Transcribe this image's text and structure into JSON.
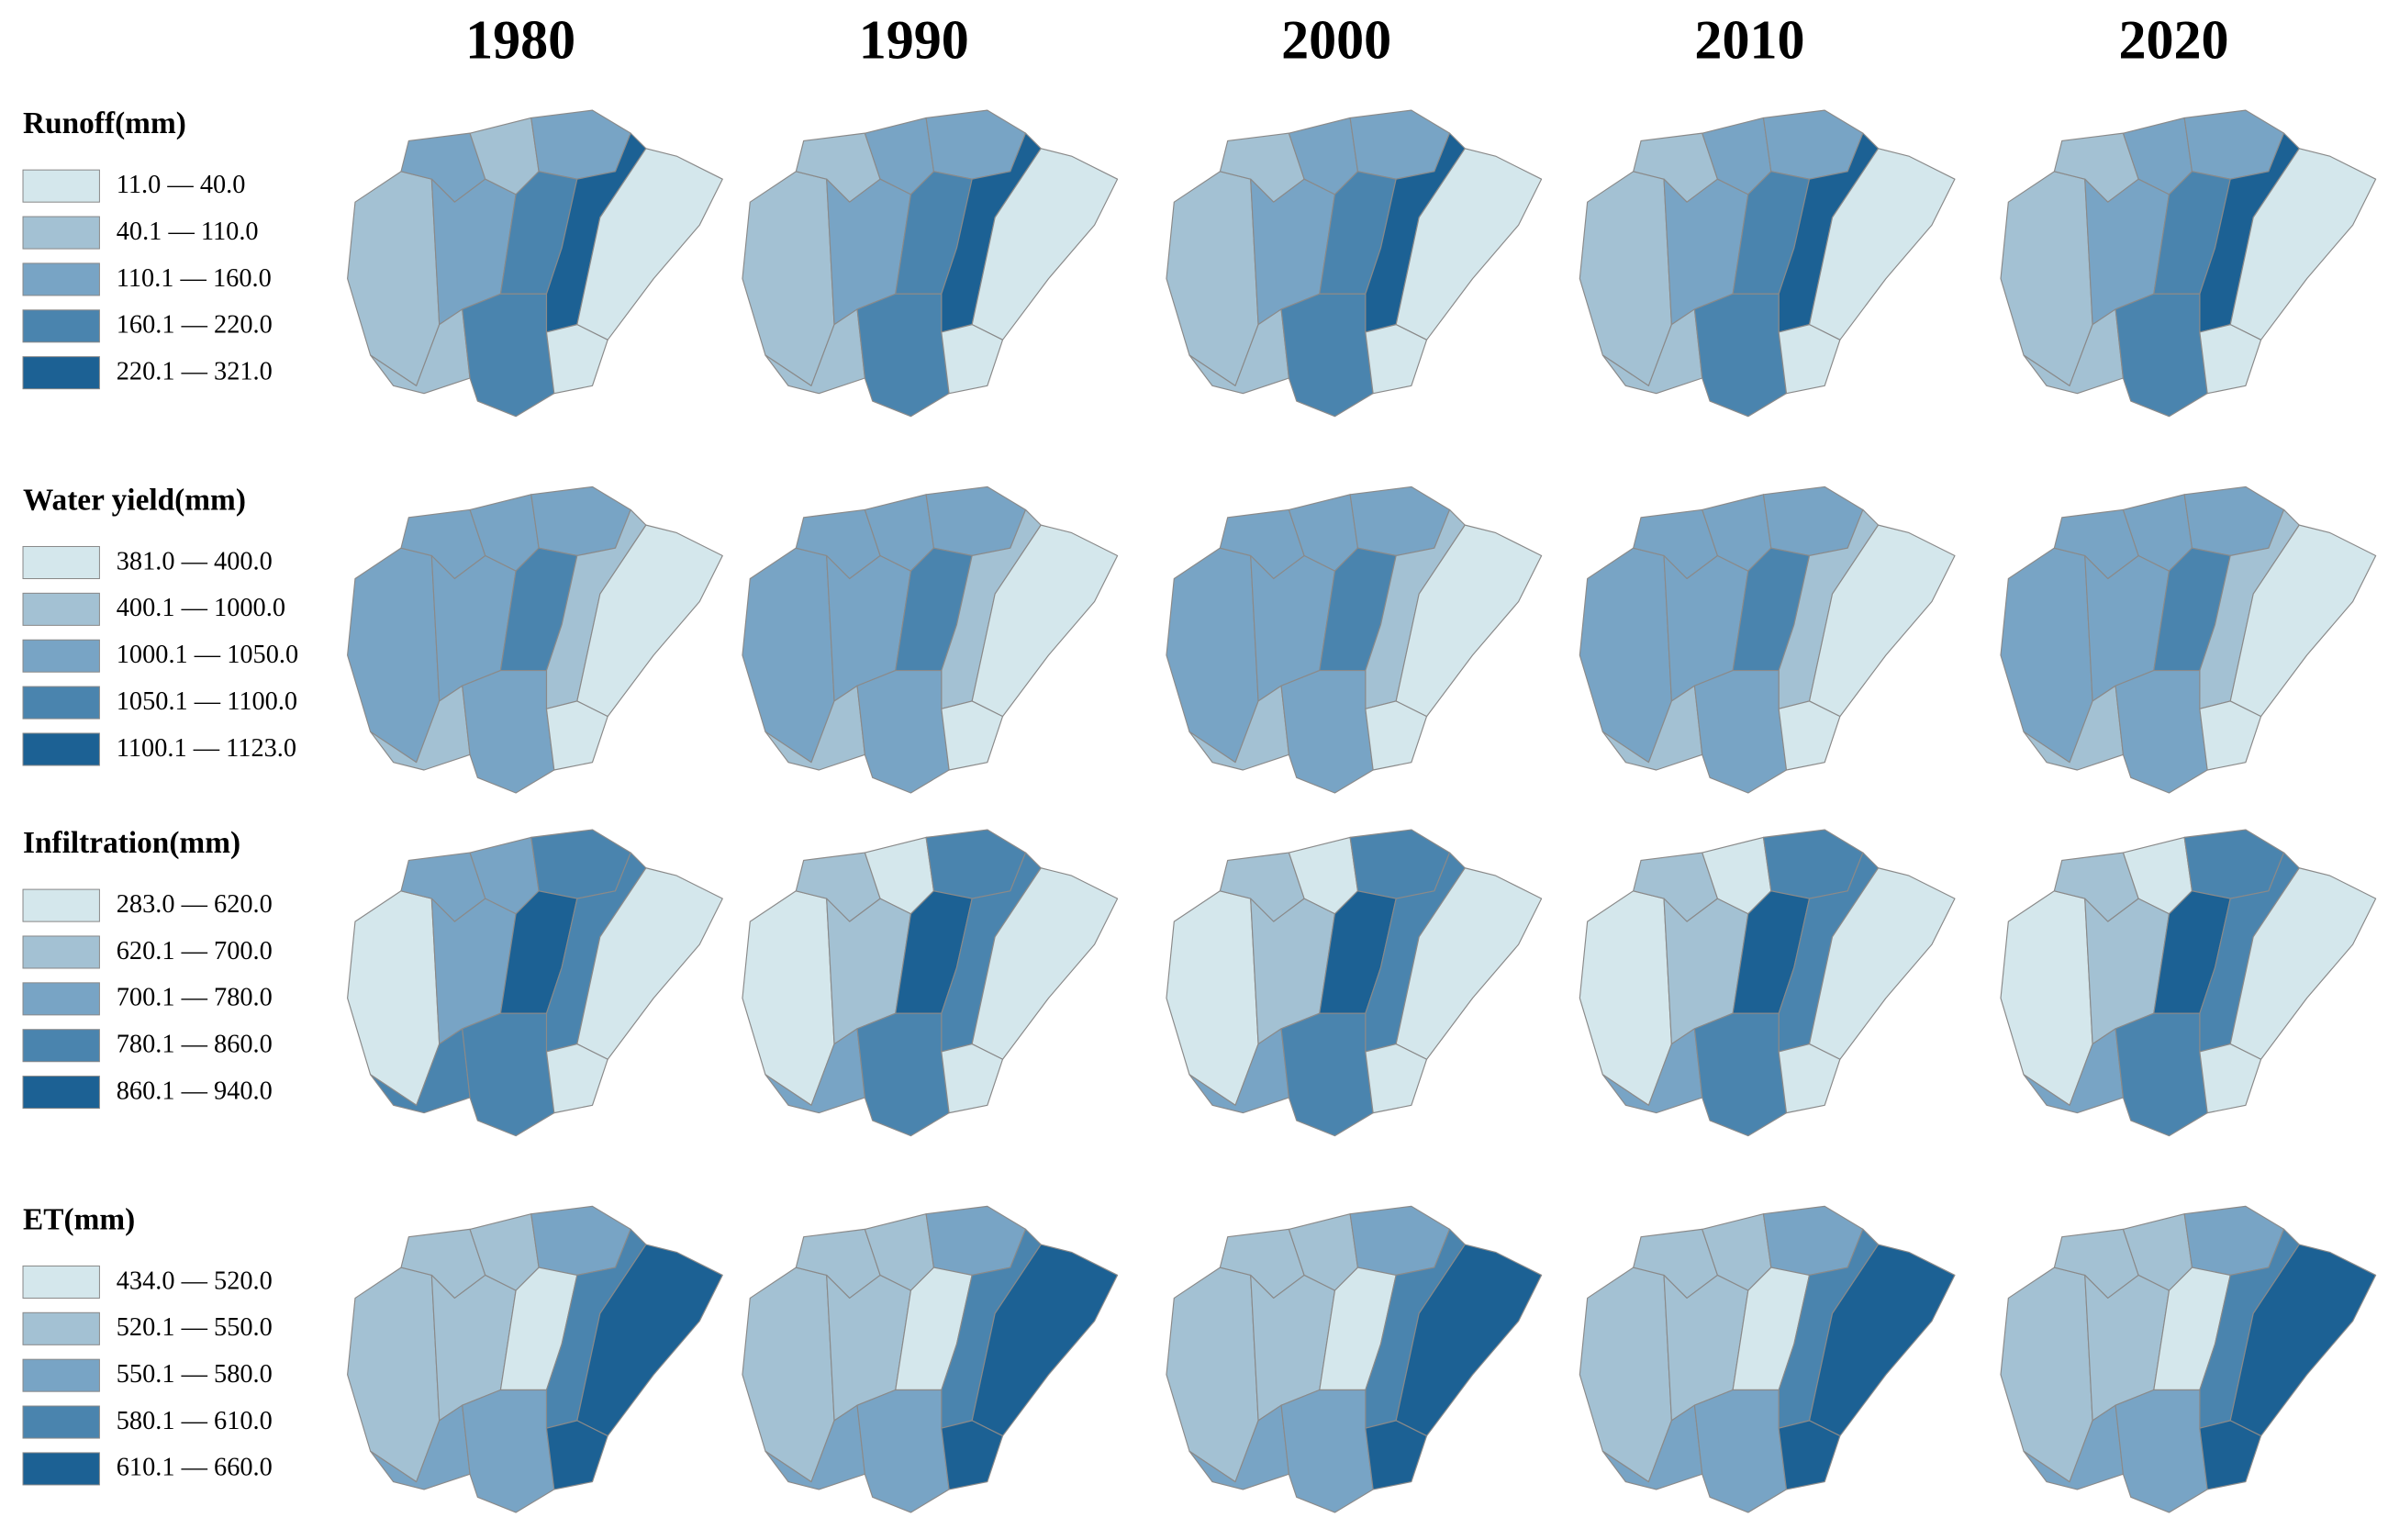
{
  "columns": [
    "1980",
    "1990",
    "2000",
    "2010",
    "2020"
  ],
  "colors": [
    "#d4e7ec",
    "#a3c1d3",
    "#78a4c5",
    "#4a84ae",
    "#1c6194"
  ],
  "rows": [
    {
      "title": "Runoff(mm)",
      "classes": [
        "11.0 — 40.0",
        "40.1 — 110.0",
        "110.1 — 160.0",
        "160.1 — 220.0",
        "220.1 — 321.0"
      ],
      "maps": [
        [
          1,
          2,
          1,
          2,
          2,
          3,
          4,
          0,
          1,
          3,
          0
        ],
        [
          1,
          1,
          2,
          2,
          2,
          3,
          4,
          0,
          1,
          3,
          0
        ],
        [
          1,
          1,
          2,
          2,
          2,
          3,
          4,
          0,
          1,
          3,
          0
        ],
        [
          1,
          1,
          2,
          2,
          2,
          3,
          4,
          0,
          1,
          3,
          0
        ],
        [
          1,
          1,
          2,
          2,
          2,
          3,
          4,
          0,
          1,
          3,
          0
        ]
      ]
    },
    {
      "title": "Water yield(mm)",
      "classes": [
        "381.0 — 400.0",
        "400.1 — 1000.0",
        "1000.1 — 1050.0",
        "1050.1 — 1100.0",
        "1100.1 — 1123.0"
      ],
      "maps": [
        [
          2,
          2,
          2,
          2,
          2,
          3,
          1,
          0,
          1,
          2,
          0
        ],
        [
          2,
          2,
          2,
          2,
          2,
          3,
          1,
          0,
          1,
          2,
          0
        ],
        [
          2,
          2,
          2,
          2,
          2,
          3,
          1,
          0,
          1,
          2,
          0
        ],
        [
          2,
          2,
          2,
          2,
          2,
          3,
          1,
          0,
          1,
          2,
          0
        ],
        [
          2,
          2,
          2,
          2,
          2,
          3,
          1,
          0,
          1,
          2,
          0
        ]
      ]
    },
    {
      "title": "Infiltration(mm)",
      "classes": [
        "283.0 — 620.0",
        "620.1 — 700.0",
        "700.1 — 780.0",
        "780.1 — 860.0",
        "860.1 — 940.0"
      ],
      "maps": [
        [
          0,
          2,
          2,
          3,
          2,
          4,
          3,
          0,
          3,
          3,
          0
        ],
        [
          0,
          1,
          0,
          3,
          1,
          4,
          3,
          0,
          2,
          3,
          0
        ],
        [
          0,
          1,
          0,
          3,
          1,
          4,
          3,
          0,
          2,
          3,
          0
        ],
        [
          0,
          1,
          0,
          3,
          1,
          4,
          3,
          0,
          2,
          3,
          0
        ],
        [
          0,
          1,
          0,
          3,
          1,
          4,
          3,
          0,
          2,
          3,
          0
        ]
      ]
    },
    {
      "title": "ET(mm)",
      "classes": [
        "434.0 — 520.0",
        "520.1 — 550.0",
        "550.1 — 580.0",
        "580.1 — 610.0",
        "610.1 — 660.0"
      ],
      "maps": [
        [
          1,
          1,
          1,
          2,
          1,
          0,
          3,
          4,
          2,
          2,
          4
        ],
        [
          1,
          1,
          1,
          2,
          1,
          0,
          3,
          4,
          2,
          2,
          4
        ],
        [
          1,
          1,
          1,
          2,
          1,
          0,
          3,
          4,
          2,
          2,
          4
        ],
        [
          1,
          1,
          1,
          2,
          1,
          0,
          3,
          4,
          2,
          2,
          4
        ],
        [
          1,
          1,
          1,
          2,
          1,
          0,
          3,
          4,
          2,
          2,
          4
        ]
      ]
    }
  ]
}
